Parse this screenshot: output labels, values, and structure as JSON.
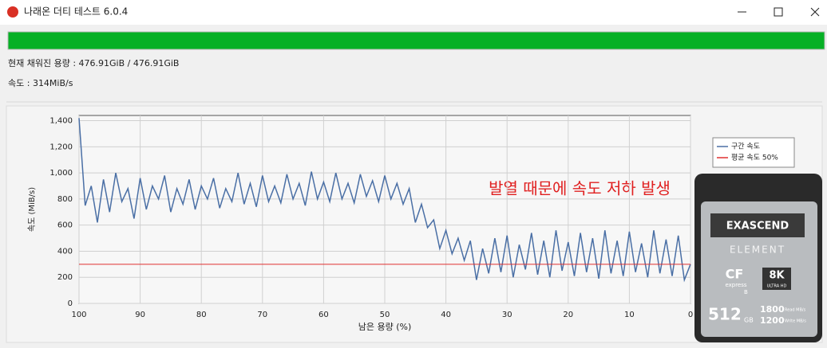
{
  "window": {
    "title": "나래온 더티 테스트 6.0.4",
    "status": [
      "현재 채워진 용량 : 476.91GiB / 476.91GiB",
      "속도 : 314MiB/s"
    ]
  },
  "chart_data": {
    "type": "line",
    "x_label": "남은 용량 (%)",
    "y_label": "속도 (MiB/s)",
    "annotation": "발열 때문에 속도 저하 발생",
    "x": [
      100,
      99,
      98,
      97,
      96,
      95,
      94,
      93,
      92,
      91,
      90,
      89,
      88,
      87,
      86,
      85,
      84,
      83,
      82,
      81,
      80,
      79,
      78,
      77,
      76,
      75,
      74,
      73,
      72,
      71,
      70,
      69,
      68,
      67,
      66,
      65,
      64,
      63,
      62,
      61,
      60,
      59,
      58,
      57,
      56,
      55,
      54,
      53,
      52,
      51,
      50,
      49,
      48,
      47,
      46,
      45,
      44,
      43,
      42,
      41,
      40,
      39,
      38,
      37,
      36,
      35,
      34,
      33,
      32,
      31,
      30,
      29,
      28,
      27,
      26,
      25,
      24,
      23,
      22,
      21,
      20,
      19,
      18,
      17,
      16,
      15,
      14,
      13,
      12,
      11,
      10,
      9,
      8,
      7,
      6,
      5,
      4,
      3,
      2,
      1,
      0
    ],
    "series": [
      {
        "name": "구간 속도",
        "color": "#4a6fa5",
        "values": [
          1420,
          750,
          900,
          620,
          950,
          700,
          1000,
          780,
          880,
          650,
          960,
          720,
          900,
          800,
          980,
          700,
          880,
          760,
          950,
          720,
          900,
          800,
          960,
          730,
          880,
          780,
          1000,
          760,
          920,
          740,
          980,
          780,
          900,
          770,
          990,
          800,
          920,
          750,
          1010,
          800,
          930,
          780,
          1000,
          800,
          920,
          770,
          990,
          820,
          940,
          780,
          980,
          800,
          920,
          760,
          880,
          620,
          760,
          580,
          640,
          420,
          560,
          380,
          500,
          330,
          480,
          180,
          420,
          230,
          500,
          240,
          520,
          200,
          450,
          260,
          540,
          220,
          480,
          200,
          560,
          250,
          470,
          210,
          540,
          240,
          500,
          190,
          560,
          230,
          480,
          210,
          550,
          240,
          460,
          200,
          560,
          230,
          490,
          210,
          520,
          180,
          300
        ]
      }
    ],
    "reference": {
      "name": "평균 속도 50%",
      "value": 300,
      "color": "#e03030"
    },
    "xlim": [
      100,
      0
    ],
    "xticks": [
      100,
      90,
      80,
      70,
      60,
      50,
      40,
      30,
      20,
      10,
      0
    ],
    "ylim": [
      0,
      1440
    ],
    "yticks": [
      0,
      200,
      400,
      600,
      800,
      {
        "value": 1000,
        "label": "1,000"
      },
      {
        "value": 1200,
        "label": "1,200"
      },
      {
        "value": 1400,
        "label": "1,400"
      }
    ],
    "grid": true
  },
  "card": {
    "brand": "EXASCEND",
    "line": "ELEMENT",
    "format": "CF",
    "format_sub": "express",
    "format_type": "B",
    "res": "8K",
    "res_sub": "ULTRA HD",
    "capacity": "512",
    "unit": "GB",
    "read": "1800",
    "write": "1200",
    "read_label": "Read MB/s",
    "write_label": "Write MB/s"
  }
}
